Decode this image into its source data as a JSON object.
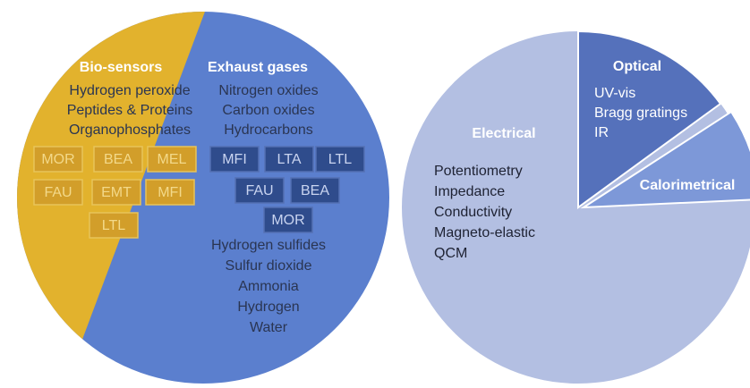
{
  "left_pie": {
    "bio_sensors": {
      "title": "Bio-sensors",
      "items": [
        "Hydrogen peroxide",
        "Peptides & Proteins",
        "Organophosphates"
      ],
      "zeolites": [
        "MOR",
        "BEA",
        "MEL",
        "FAU",
        "EMT",
        "MFI",
        "LTL"
      ]
    },
    "exhaust_gases": {
      "title": "Exhaust gases",
      "items": [
        "Nitrogen oxides",
        "Carbon oxides",
        "Hydrocarbons"
      ],
      "zeolites": [
        "MFI",
        "LTA",
        "LTL",
        "FAU",
        "BEA",
        "MOR"
      ],
      "more_items": [
        "Hydrogen sulfides",
        "Sulfur dioxide",
        "Ammonia",
        "Hydrogen",
        "Water"
      ]
    }
  },
  "right_pie": {
    "optical": {
      "title": "Optical",
      "items": [
        "UV-vis",
        "Bragg gratings",
        "IR"
      ]
    },
    "electrical": {
      "title": "Electrical",
      "items": [
        "Potentiometry",
        "Impedance",
        "Conductivity",
        "Magneto-elastic",
        "QCM"
      ]
    },
    "calorimetrical": {
      "title": "Calorimetrical"
    }
  }
}
